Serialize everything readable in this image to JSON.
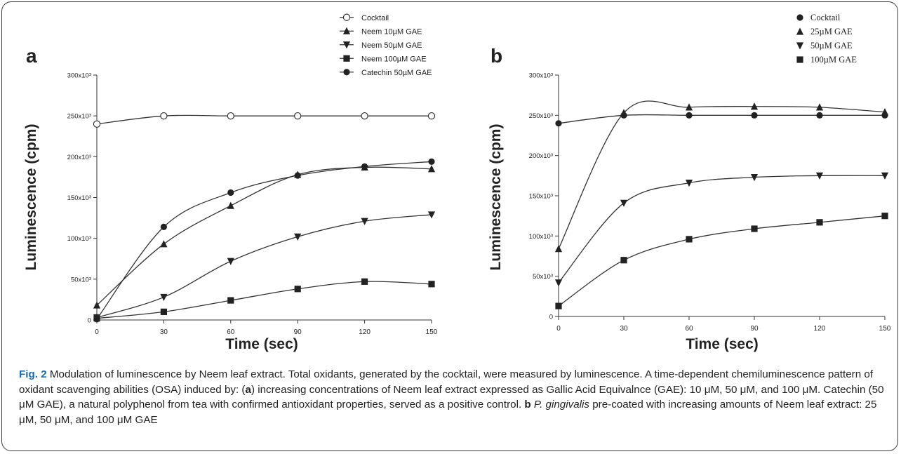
{
  "figure": {
    "caption": {
      "label": "Fig. 2",
      "text_1": " Modulation of luminescence by Neem leaf extract. Total oxidants, generated by the cocktail, were measured by luminescence. A time-dependent chemiluminescence pattern of oxidant scavenging abilities (OSA) induced by: (",
      "part_a": "a",
      "text_2": ") increasing concentrations of Neem leaf extract expressed as Gallic Acid Equivalnce (GAE): 10 μM, 50 μM, and 100 μM. Catechin (50 μM GAE), a natural polyphenol from tea with confirmed antioxidant properties, served as a positive control. ",
      "part_b": "b",
      "text_3": " ",
      "species": "P. gingivalis",
      "text_4": " pre-coated with increasing amounts of Neem leaf extract: 25 μM, 50 μM, and 100 μM GAE"
    }
  },
  "chart_data": [
    {
      "panel": "a",
      "type": "line",
      "xlabel": "Time (sec)",
      "ylabel": "Luminescence (cpm)",
      "x": [
        0,
        30,
        60,
        90,
        120,
        150
      ],
      "xticks": [
        "0",
        "30",
        "60",
        "90",
        "120",
        "150"
      ],
      "yticks": [
        "0",
        "50x10³",
        "100x10³",
        "150x10³",
        "200x10³",
        "250x10³",
        "300x10³"
      ],
      "ylim": [
        0,
        300000
      ],
      "legend_position": "top-right",
      "series": [
        {
          "name": "Cocktail",
          "marker": "open-circle",
          "values": [
            240000,
            250000,
            250000,
            250000,
            250000,
            250000
          ]
        },
        {
          "name": "Neem 10µM GAE",
          "marker": "triangle-up",
          "values": [
            18000,
            93000,
            140000,
            178000,
            187000,
            185000
          ]
        },
        {
          "name": "Neem 50µM GAE",
          "marker": "triangle-down",
          "values": [
            3000,
            28000,
            72000,
            102000,
            121000,
            129000
          ]
        },
        {
          "name": "Neem 100µM GAE",
          "marker": "square",
          "values": [
            2000,
            10000,
            24000,
            38000,
            47000,
            44000
          ]
        },
        {
          "name": "Catechin 50µM GAE",
          "marker": "filled-circle",
          "values": [
            1000,
            114000,
            156000,
            177000,
            188000,
            194000
          ]
        }
      ]
    },
    {
      "panel": "b",
      "type": "line",
      "xlabel": "Time (sec)",
      "ylabel": "Luminescence (cpm)",
      "x": [
        0,
        30,
        60,
        90,
        120,
        150
      ],
      "xticks": [
        "0",
        "30",
        "60",
        "90",
        "120",
        "150"
      ],
      "yticks": [
        "0",
        "50x10³",
        "100x10³",
        "150x10³",
        "200x10³",
        "250x10³",
        "300x10³"
      ],
      "ylim": [
        0,
        300000
      ],
      "legend_position": "top-right",
      "series": [
        {
          "name": "Cocktail",
          "marker": "filled-circle",
          "values": [
            240000,
            250000,
            250000,
            250000,
            250000,
            250000
          ]
        },
        {
          "name": "25µM GAE",
          "marker": "triangle-up",
          "values": [
            84000,
            253000,
            260000,
            261000,
            260000,
            254000
          ]
        },
        {
          "name": "50µM GAE",
          "marker": "triangle-down",
          "values": [
            42000,
            141000,
            166000,
            173000,
            175000,
            175000
          ]
        },
        {
          "name": "100µM GAE",
          "marker": "square",
          "values": [
            13000,
            70000,
            96000,
            109000,
            117000,
            125000
          ]
        }
      ]
    }
  ]
}
